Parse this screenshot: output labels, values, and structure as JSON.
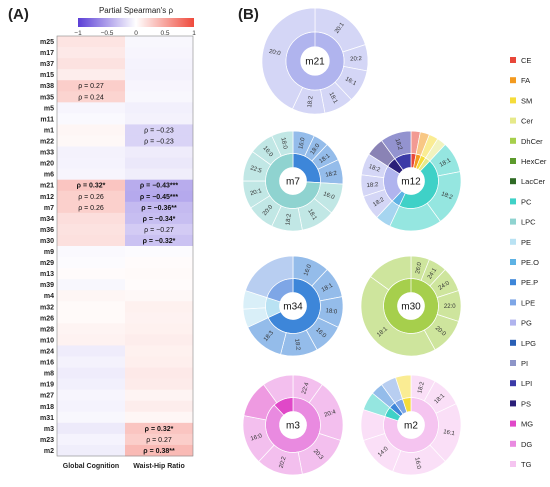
{
  "panels": {
    "a_label": "(A)",
    "b_label": "(B)"
  },
  "chart_data": [
    {
      "type": "heatmap",
      "colorbar": {
        "title": "Partial Spearman's ρ",
        "ticks": [
          "−1",
          "−0.5",
          "0",
          "0.5",
          "1"
        ],
        "range": [
          -1,
          1
        ],
        "low_color": "#5b3fd6",
        "mid_color": "#ffffff",
        "high_color": "#ef4a3c"
      },
      "columns": [
        "Global Cognition",
        "Waist-Hip Ratio"
      ],
      "rows": [
        "m25",
        "m17",
        "m37",
        "m15",
        "m38",
        "m35",
        "m5",
        "m11",
        "m1",
        "m22",
        "m33",
        "m20",
        "m6",
        "m21",
        "m12",
        "m7",
        "m34",
        "m36",
        "m30",
        "m9",
        "m29",
        "m13",
        "m39",
        "m4",
        "m32",
        "m26",
        "m28",
        "m10",
        "m24",
        "m16",
        "m8",
        "m19",
        "m27",
        "m18",
        "m31",
        "m3",
        "m23",
        "m2"
      ],
      "values": [
        [
          0.15,
          -0.04
        ],
        [
          0.12,
          -0.05
        ],
        [
          0.16,
          -0.06
        ],
        [
          0.1,
          -0.07
        ],
        [
          0.27,
          -0.05
        ],
        [
          0.24,
          -0.04
        ],
        [
          -0.05,
          -0.08
        ],
        [
          -0.03,
          -0.07
        ],
        [
          0.05,
          -0.23
        ],
        [
          0.04,
          -0.23
        ],
        [
          -0.07,
          -0.1
        ],
        [
          -0.06,
          -0.12
        ],
        [
          -0.05,
          -0.09
        ],
        [
          0.32,
          -0.43
        ],
        [
          0.26,
          -0.45
        ],
        [
          0.26,
          -0.36
        ],
        [
          0.18,
          -0.34
        ],
        [
          0.16,
          -0.27
        ],
        [
          0.17,
          -0.32
        ],
        [
          -0.03,
          -0.02
        ],
        [
          -0.02,
          0.02
        ],
        [
          0.02,
          0.03
        ],
        [
          -0.04,
          0.02
        ],
        [
          0.05,
          0.04
        ],
        [
          0.03,
          0.08
        ],
        [
          0.03,
          0.07
        ],
        [
          0.06,
          0.08
        ],
        [
          0.07,
          0.1
        ],
        [
          -0.1,
          0.08
        ],
        [
          -0.07,
          0.09
        ],
        [
          -0.1,
          0.12
        ],
        [
          -0.08,
          0.11
        ],
        [
          -0.05,
          0.06
        ],
        [
          -0.06,
          0.1
        ],
        [
          -0.04,
          0.05
        ],
        [
          -0.11,
          0.32
        ],
        [
          -0.06,
          0.27
        ],
        [
          -0.09,
          0.38
        ]
      ],
      "annotations": [
        {
          "row": "m38",
          "col": 0,
          "text": "ρ = 0.27",
          "bold": false
        },
        {
          "row": "m35",
          "col": 0,
          "text": "ρ = 0.24",
          "bold": false
        },
        {
          "row": "m1",
          "col": 1,
          "text": "ρ = −0.23",
          "bold": false
        },
        {
          "row": "m22",
          "col": 1,
          "text": "ρ = −0.23",
          "bold": false
        },
        {
          "row": "m21",
          "col": 0,
          "text": "ρ = 0.32*",
          "bold": true
        },
        {
          "row": "m21",
          "col": 1,
          "text": "ρ = −0.43***",
          "bold": true
        },
        {
          "row": "m12",
          "col": 0,
          "text": "ρ = 0.26",
          "bold": false
        },
        {
          "row": "m12",
          "col": 1,
          "text": "ρ = −0.45***",
          "bold": true
        },
        {
          "row": "m7",
          "col": 0,
          "text": "ρ = 0.26",
          "bold": false
        },
        {
          "row": "m7",
          "col": 1,
          "text": "ρ = −0.36**",
          "bold": true
        },
        {
          "row": "m34",
          "col": 1,
          "text": "ρ = −0.34*",
          "bold": true
        },
        {
          "row": "m36",
          "col": 1,
          "text": "ρ = −0.27",
          "bold": false
        },
        {
          "row": "m30",
          "col": 1,
          "text": "ρ = −0.32*",
          "bold": true
        },
        {
          "row": "m3",
          "col": 1,
          "text": "ρ = 0.32*",
          "bold": true
        },
        {
          "row": "m23",
          "col": 1,
          "text": "ρ = 0.27",
          "bold": false
        },
        {
          "row": "m2",
          "col": 1,
          "text": "ρ = 0.38**",
          "bold": true
        }
      ]
    },
    {
      "type": "sunburst",
      "legend": [
        {
          "name": "CE",
          "color": "#e8473a"
        },
        {
          "name": "FA",
          "color": "#f39a1f"
        },
        {
          "name": "SM",
          "color": "#f5dc3a"
        },
        {
          "name": "Cer",
          "color": "#e6e98a"
        },
        {
          "name": "DhCer",
          "color": "#a6cf4c"
        },
        {
          "name": "HexCer",
          "color": "#5c9a2c"
        },
        {
          "name": "LacCer",
          "color": "#2f6a25"
        },
        {
          "name": "PC",
          "color": "#3fd1c7"
        },
        {
          "name": "LPC",
          "color": "#8fd3d0"
        },
        {
          "name": "PE",
          "color": "#b9e2f3"
        },
        {
          "name": "PE.O",
          "color": "#5db2e4"
        },
        {
          "name": "PE.P",
          "color": "#3d86d9"
        },
        {
          "name": "LPE",
          "color": "#7ea6e6"
        },
        {
          "name": "PG",
          "color": "#b0b4ee"
        },
        {
          "name": "LPG",
          "color": "#2a5fb5"
        },
        {
          "name": "PI",
          "color": "#8d95c8"
        },
        {
          "name": "LPI",
          "color": "#3b3aa7"
        },
        {
          "name": "PS",
          "color": "#2a1e78"
        },
        {
          "name": "MG",
          "color": "#e048c8"
        },
        {
          "name": "DG",
          "color": "#e98ae0"
        },
        {
          "name": "TG",
          "color": "#f5c4f0"
        }
      ],
      "modules": [
        {
          "name": "m21",
          "inner": [
            {
              "class": "PG",
              "value": 1
            }
          ],
          "outer": [
            {
              "class": "PG",
              "value": 0.2,
              "label": "20:1"
            },
            {
              "class": "PG",
              "value": 0.08,
              "label": "20:2"
            },
            {
              "class": "PG",
              "value": 0.1,
              "label": "16:1"
            },
            {
              "class": "PG",
              "value": 0.09,
              "label": "18:1"
            },
            {
              "class": "PG",
              "value": 0.1,
              "label": "18:2"
            },
            {
              "class": "PG",
              "value": 0.43,
              "label": "20:0"
            }
          ]
        },
        {
          "name": "m7",
          "inner": [
            {
              "class": "PE.P",
              "value": 0.26
            },
            {
              "class": "LPC",
              "value": 0.74
            }
          ],
          "outer": [
            {
              "class": "PE.P",
              "value": 0.07,
              "label": "16:0"
            },
            {
              "class": "PE.P",
              "value": 0.05,
              "label": "18:0"
            },
            {
              "class": "PE.P",
              "value": 0.06,
              "label": "18:1"
            },
            {
              "class": "PE.P",
              "value": 0.08,
              "label": "18:2"
            },
            {
              "class": "LPC",
              "value": 0.1,
              "label": "16:0"
            },
            {
              "class": "LPC",
              "value": 0.11,
              "label": "18:1"
            },
            {
              "class": "LPC",
              "value": 0.1,
              "label": "18:2"
            },
            {
              "class": "LPC",
              "value": 0.09,
              "label": "20:0"
            },
            {
              "class": "LPC",
              "value": 0.09,
              "label": "20:1"
            },
            {
              "class": "LPC",
              "value": 0.1,
              "label": "22:5"
            },
            {
              "class": "LPC",
              "value": 0.08,
              "label": "16:0"
            },
            {
              "class": "LPC",
              "value": 0.07,
              "label": "18:0"
            }
          ]
        },
        {
          "name": "m12",
          "inner": [
            {
              "class": "CE",
              "value": 0.03
            },
            {
              "class": "FA",
              "value": 0.03
            },
            {
              "class": "SM",
              "value": 0.03
            },
            {
              "class": "Cer",
              "value": 0.03
            },
            {
              "class": "PC",
              "value": 0.45
            },
            {
              "class": "PE.O",
              "value": 0.05
            },
            {
              "class": "PG",
              "value": 0.22
            },
            {
              "class": "PS",
              "value": 0.06
            },
            {
              "class": "LPI",
              "value": 0.1
            }
          ],
          "outer": [
            {
              "class": "CE",
              "value": 0.03,
              "label": ""
            },
            {
              "class": "FA",
              "value": 0.03,
              "label": ""
            },
            {
              "class": "SM",
              "value": 0.03,
              "label": ""
            },
            {
              "class": "Cer",
              "value": 0.03,
              "label": ""
            },
            {
              "class": "PC",
              "value": 0.1,
              "label": "18:1"
            },
            {
              "class": "PC",
              "value": 0.18,
              "label": "18:2"
            },
            {
              "class": "PC",
              "value": 0.17,
              "label": ""
            },
            {
              "class": "PE.O",
              "value": 0.05,
              "label": ""
            },
            {
              "class": "PG",
              "value": 0.08,
              "label": "18:2"
            },
            {
              "class": "PG",
              "value": 0.07,
              "label": "18:2"
            },
            {
              "class": "PG",
              "value": 0.07,
              "label": "18:2"
            },
            {
              "class": "PS",
              "value": 0.06,
              "label": ""
            },
            {
              "class": "LPI",
              "value": 0.1,
              "label": "18:2"
            }
          ]
        },
        {
          "name": "m34",
          "inner": [
            {
              "class": "PE.P",
              "value": 0.68
            },
            {
              "class": "PE",
              "value": 0.12
            },
            {
              "class": "LPE",
              "value": 0.2
            }
          ],
          "outer": [
            {
              "class": "PE.P",
              "value": 0.12,
              "label": "16:0"
            },
            {
              "class": "PE.P",
              "value": 0.1,
              "label": "18:1"
            },
            {
              "class": "PE.P",
              "value": 0.1,
              "label": "18:0"
            },
            {
              "class": "PE.P",
              "value": 0.1,
              "label": "16:0"
            },
            {
              "class": "PE.P",
              "value": 0.12,
              "label": "18:2"
            },
            {
              "class": "PE.P",
              "value": 0.14,
              "label": "18:3"
            },
            {
              "class": "PE",
              "value": 0.06,
              "label": ""
            },
            {
              "class": "PE",
              "value": 0.06,
              "label": ""
            },
            {
              "class": "LPE",
              "value": 0.2,
              "label": ""
            }
          ]
        },
        {
          "name": "m30",
          "inner": [
            {
              "class": "DhCer",
              "value": 1
            }
          ],
          "outer": [
            {
              "class": "DhCer",
              "value": 0.06,
              "label": "26:0"
            },
            {
              "class": "DhCer",
              "value": 0.06,
              "label": "24:1"
            },
            {
              "class": "DhCer",
              "value": 0.08,
              "label": "24:0"
            },
            {
              "class": "DhCer",
              "value": 0.1,
              "label": "22:0"
            },
            {
              "class": "DhCer",
              "value": 0.12,
              "label": "20:0"
            },
            {
              "class": "DhCer",
              "value": 0.43,
              "label": "18:1"
            },
            {
              "class": "DhCer",
              "value": 0.15,
              "label": ""
            }
          ]
        },
        {
          "name": "m3",
          "inner": [
            {
              "class": "DG",
              "value": 0.88
            },
            {
              "class": "MG",
              "value": 0.12
            }
          ],
          "outer": [
            {
              "class": "DG",
              "value": 0.1,
              "label": "22:4"
            },
            {
              "class": "DG",
              "value": 0.2,
              "label": "20:4"
            },
            {
              "class": "DG",
              "value": 0.17,
              "label": "20:3"
            },
            {
              "class": "DG",
              "value": 0.15,
              "label": "20:2"
            },
            {
              "class": "DG",
              "value": 0.16,
              "label": "16:0"
            },
            {
              "class": "MG",
              "value": 0.12,
              "label": ""
            },
            {
              "class": "DG",
              "value": 0.1,
              "label": ""
            }
          ]
        },
        {
          "name": "m2",
          "inner": [
            {
              "class": "TG",
              "value": 0.8
            },
            {
              "class": "PC",
              "value": 0.06
            },
            {
              "class": "PE.P",
              "value": 0.04
            },
            {
              "class": "LPE",
              "value": 0.05
            },
            {
              "class": "SM",
              "value": 0.05
            }
          ],
          "outer": [
            {
              "class": "TG",
              "value": 0.08,
              "label": "18:2"
            },
            {
              "class": "TG",
              "value": 0.1,
              "label": "18:1"
            },
            {
              "class": "TG",
              "value": 0.2,
              "label": "16:1"
            },
            {
              "class": "TG",
              "value": 0.18,
              "label": "16:0"
            },
            {
              "class": "TG",
              "value": 0.14,
              "label": "14:0"
            },
            {
              "class": "TG",
              "value": 0.1,
              "label": ""
            },
            {
              "class": "PC",
              "value": 0.06,
              "label": ""
            },
            {
              "class": "PE.P",
              "value": 0.04,
              "label": ""
            },
            {
              "class": "LPE",
              "value": 0.05,
              "label": ""
            },
            {
              "class": "SM",
              "value": 0.05,
              "label": ""
            }
          ]
        }
      ]
    }
  ]
}
